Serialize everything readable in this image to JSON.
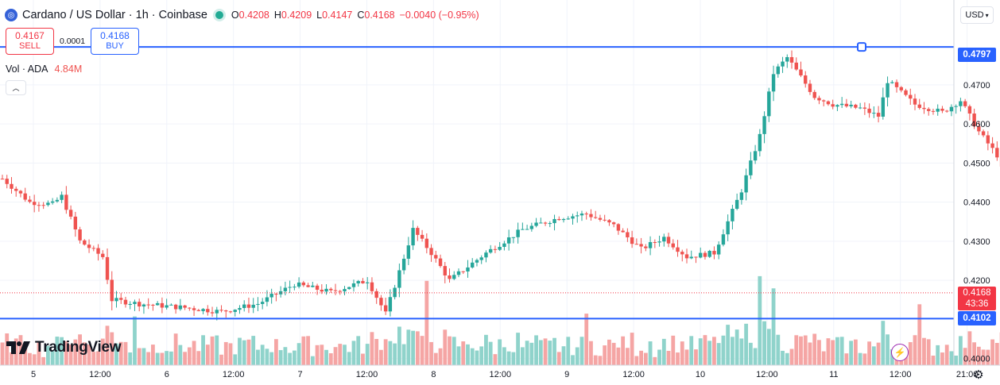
{
  "header": {
    "symbol_icon": "cardano-logo-icon",
    "title": "Cardano / US Dollar · 1h · Coinbase",
    "ohlc": {
      "o_label": "O",
      "o_value": "0.4208",
      "h_label": "H",
      "h_value": "0.4209",
      "l_label": "L",
      "l_value": "0.4147",
      "c_label": "C",
      "c_value": "0.4168",
      "change": "−0.0040 (−0.95%)"
    }
  },
  "trade": {
    "sell_price": "0.4167",
    "sell_label": "SELL",
    "spread": "0.0001",
    "buy_price": "0.4168",
    "buy_label": "BUY"
  },
  "volume_legend": {
    "label": "Vol · ADA",
    "value": "4.84M"
  },
  "currency": "USD",
  "logo_text": "TradingView",
  "price_labels": {
    "upper_line": "0.4797",
    "lower_line": "0.4102",
    "last_price": "0.4168",
    "countdown": "43:36"
  },
  "colors": {
    "up": "#26a69a",
    "down": "#ef5350",
    "up_volume": "#8fd3cb",
    "down_volume": "#f5a5a4",
    "line": "#2962ff",
    "grid": "#f0f3fa"
  },
  "chart_data": {
    "type": "candlestick",
    "title": "Cardano / US Dollar · 1h · Coinbase",
    "ylim": [
      0.3983,
      0.4917
    ],
    "yticks": [
      "0.4700",
      "0.4600",
      "0.4500",
      "0.4400",
      "0.4300",
      "0.4200",
      "0.4000"
    ],
    "xticks": [
      "5",
      "12:00",
      "6",
      "12:00",
      "7",
      "12:00",
      "8",
      "12:00",
      "9",
      "12:00",
      "10",
      "12:00",
      "11",
      "12:00",
      "21:00"
    ],
    "horizontal_lines": [
      0.4797,
      0.4102
    ],
    "last_price": 0.4168,
    "anchors": [
      [
        0,
        0.446
      ],
      [
        6,
        0.44
      ],
      [
        11,
        0.4395
      ],
      [
        13,
        0.4415
      ],
      [
        17,
        0.43
      ],
      [
        22,
        0.426
      ],
      [
        24,
        0.415
      ],
      [
        30,
        0.414
      ],
      [
        40,
        0.413
      ],
      [
        48,
        0.412
      ],
      [
        56,
        0.414
      ],
      [
        64,
        0.419
      ],
      [
        72,
        0.417
      ],
      [
        80,
        0.42
      ],
      [
        84,
        0.4115
      ],
      [
        90,
        0.433
      ],
      [
        94,
        0.427
      ],
      [
        98,
        0.42
      ],
      [
        106,
        0.427
      ],
      [
        114,
        0.433
      ],
      [
        122,
        0.436
      ],
      [
        128,
        0.437
      ],
      [
        134,
        0.434
      ],
      [
        140,
        0.428
      ],
      [
        145,
        0.431
      ],
      [
        150,
        0.426
      ],
      [
        156,
        0.427
      ],
      [
        162,
        0.443
      ],
      [
        166,
        0.457
      ],
      [
        169,
        0.473
      ],
      [
        172,
        0.477
      ],
      [
        178,
        0.467
      ],
      [
        182,
        0.465
      ],
      [
        188,
        0.464
      ],
      [
        192,
        0.462
      ],
      [
        194,
        0.471
      ],
      [
        200,
        0.465
      ],
      [
        206,
        0.463
      ],
      [
        210,
        0.466
      ],
      [
        214,
        0.458
      ],
      [
        218,
        0.452
      ],
      [
        222,
        0.438
      ],
      [
        226,
        0.429
      ],
      [
        230,
        0.424
      ],
      [
        234,
        0.4168
      ]
    ],
    "volume_spikes": [
      [
        29,
        0.52
      ],
      [
        93,
        0.9
      ],
      [
        128,
        0.55
      ],
      [
        166,
        0.95
      ],
      [
        169,
        0.82
      ],
      [
        201,
        0.65
      ],
      [
        226,
        0.58
      ]
    ]
  }
}
